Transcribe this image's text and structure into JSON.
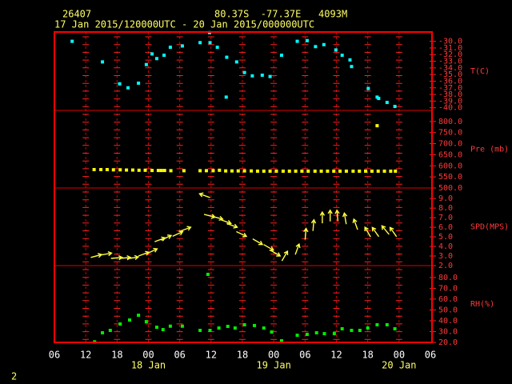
{
  "header": {
    "station": "26407",
    "location": "80.37S  -77.37E   4093M",
    "period": "17 Jan 2015/120000UTC - 20 Jan 2015/000000UTC",
    "page": "2"
  },
  "x_axis": {
    "xlim": [
      0,
      72
    ],
    "xticks": [
      {
        "value": 0,
        "label": "06"
      },
      {
        "value": 6,
        "label": "12"
      },
      {
        "value": 12,
        "label": "18"
      },
      {
        "value": 18,
        "label": "00"
      },
      {
        "value": 24,
        "label": "06"
      },
      {
        "value": 30,
        "label": "12"
      },
      {
        "value": 36,
        "label": "18"
      },
      {
        "value": 42,
        "label": "00"
      },
      {
        "value": 48,
        "label": "06"
      },
      {
        "value": 54,
        "label": "12"
      },
      {
        "value": 60,
        "label": "18"
      },
      {
        "value": 66,
        "label": "00"
      },
      {
        "value": 72,
        "label": "06"
      }
    ],
    "date_labels": [
      {
        "value": 18,
        "label": "18 Jan"
      },
      {
        "value": 42,
        "label": "19 Jan"
      },
      {
        "value": 66,
        "label": "20 Jan"
      }
    ]
  },
  "chart_data": [
    {
      "type": "scatter",
      "ylabel": "T(C)",
      "color": "#00ffff",
      "x": [
        3.4,
        9.2,
        12.5,
        14.1,
        16.1,
        17.6,
        18.7,
        19.6,
        21.0,
        22.2,
        24.5,
        27.9,
        29.7,
        29.8,
        31.2,
        32.9,
        33.0,
        34.9,
        36.4,
        37.9,
        39.8,
        41.3,
        43.5,
        46.5,
        48.4,
        50.0,
        51.6,
        53.9,
        55.1,
        56.6,
        56.9,
        60.1,
        61.8,
        62.1,
        63.7,
        65.2
      ],
      "values": [
        -30.0,
        -33.1,
        -36.4,
        -37.0,
        -36.3,
        -33.5,
        -31.9,
        -32.6,
        -32.1,
        -30.9,
        -30.7,
        -30.2,
        -28.7,
        -30.2,
        -30.9,
        -38.4,
        -32.4,
        -33.1,
        -34.7,
        -35.2,
        -35.1,
        -35.3,
        -32.1,
        -30.0,
        -29.9,
        -30.8,
        -30.5,
        -31.3,
        -32.1,
        -32.8,
        -33.8,
        -37.1,
        -38.4,
        -38.6,
        -39.2,
        -39.8
      ],
      "ylim": [
        -40.4,
        -28.6
      ],
      "yticks": [
        {
          "value": -30,
          "label": "-30.0"
        },
        {
          "value": -31,
          "label": "-31.0"
        },
        {
          "value": -32,
          "label": "-32.0"
        },
        {
          "value": -33,
          "label": "-33.0"
        },
        {
          "value": -34,
          "label": "-34.0"
        },
        {
          "value": -35,
          "label": "-35.0"
        },
        {
          "value": -36,
          "label": "-36.0"
        },
        {
          "value": -37,
          "label": "-37.0"
        },
        {
          "value": -38,
          "label": "-38.0"
        },
        {
          "value": -39,
          "label": "-39.0"
        },
        {
          "value": -40,
          "label": "-40.0"
        }
      ]
    },
    {
      "type": "scatter",
      "ylabel": "Pre (mb)",
      "color": "#ffff00",
      "x": [
        7.6,
        8.9,
        10.1,
        11.3,
        12.6,
        13.8,
        15.0,
        16.2,
        17.4,
        18.7,
        19.9,
        20.5,
        21.1,
        22.3,
        24.8,
        27.9,
        29.1,
        30.4,
        31.6,
        32.8,
        34.0,
        35.2,
        36.4,
        37.7,
        38.9,
        40.1,
        41.3,
        42.5,
        43.8,
        45.0,
        46.2,
        47.4,
        48.6,
        49.9,
        51.1,
        52.3,
        53.5,
        54.7,
        55.9,
        57.2,
        58.4,
        59.6,
        60.8,
        61.8,
        62.0,
        63.2,
        64.4,
        65.3
      ],
      "values": [
        583,
        583,
        583,
        582,
        582,
        581,
        581,
        580,
        580,
        579,
        579,
        579,
        579,
        578,
        578,
        578,
        578,
        578,
        580,
        577,
        577,
        577,
        577,
        577,
        576,
        576,
        576,
        576,
        576,
        576,
        576,
        576,
        576,
        576,
        576,
        576,
        576,
        576,
        576,
        576,
        576,
        576,
        576,
        781,
        576,
        576,
        576,
        576
      ],
      "ylim": [
        500,
        850
      ],
      "yticks": [
        {
          "value": 500,
          "label": "500.0"
        },
        {
          "value": 550,
          "label": "550.0"
        },
        {
          "value": 600,
          "label": "600.0"
        },
        {
          "value": 650,
          "label": "650.0"
        },
        {
          "value": 700,
          "label": "700.0"
        },
        {
          "value": 750,
          "label": "750.0"
        },
        {
          "value": 800,
          "label": "800.0"
        }
      ]
    },
    {
      "type": "arrow",
      "ylabel": "SPD(MPS)",
      "color": "#ffff40",
      "x": [
        8.0,
        9.9,
        11.9,
        13.5,
        15.0,
        17.1,
        18.7,
        20.2,
        21.4,
        23.6,
        25.1,
        28.8,
        29.7,
        31.2,
        32.8,
        34.0,
        35.8,
        38.9,
        41.0,
        42.3,
        44.1,
        46.5,
        48.1,
        49.6,
        51.3,
        52.8,
        54.2,
        55.7,
        57.7,
        60.0,
        61.5,
        63.4,
        64.9
      ],
      "values": [
        3.0,
        3.2,
        2.8,
        2.8,
        2.8,
        3.2,
        3.5,
        4.7,
        4.9,
        5.3,
        5.8,
        9.3,
        7.2,
        7.0,
        6.6,
        6.2,
        5.3,
        4.5,
        3.9,
        3.3,
        3.0,
        3.7,
        5.3,
        6.2,
        7.0,
        7.2,
        7.2,
        6.9,
        6.3,
        5.5,
        5.5,
        5.7,
        5.5
      ],
      "directions": [
        255,
        260,
        265,
        265,
        260,
        250,
        245,
        250,
        245,
        245,
        250,
        110,
        285,
        285,
        290,
        290,
        295,
        300,
        300,
        300,
        210,
        200,
        185,
        185,
        180,
        180,
        175,
        170,
        160,
        150,
        145,
        140,
        145
      ],
      "ylim": [
        2,
        10.1
      ],
      "yticks": [
        {
          "value": 2,
          "label": "2.0"
        },
        {
          "value": 3,
          "label": "3.0"
        },
        {
          "value": 4,
          "label": "4.0"
        },
        {
          "value": 5,
          "label": "5.0"
        },
        {
          "value": 6,
          "label": "6.0"
        },
        {
          "value": 7,
          "label": "7.0"
        },
        {
          "value": 8,
          "label": "8.0"
        },
        {
          "value": 9,
          "label": "9.0"
        }
      ]
    },
    {
      "type": "scatter",
      "ylabel": "RH(%)",
      "color": "#00ee00",
      "x": [
        7.7,
        9.2,
        10.7,
        12.6,
        14.4,
        16.1,
        17.6,
        19.6,
        20.8,
        22.2,
        24.5,
        27.9,
        29.4,
        29.8,
        31.5,
        33.2,
        34.6,
        36.4,
        38.3,
        40.1,
        41.6,
        43.5,
        46.5,
        48.4,
        50.2,
        51.7,
        53.6,
        55.1,
        56.9,
        58.5,
        60.0,
        61.8,
        63.7,
        65.2
      ],
      "values": [
        20.5,
        28.9,
        31.1,
        37.0,
        40.7,
        45.1,
        39.2,
        34.0,
        31.8,
        35.0,
        35.0,
        31.1,
        82.9,
        31.1,
        33.3,
        34.8,
        33.3,
        36.3,
        35.6,
        33.3,
        29.6,
        21.5,
        26.6,
        27.4,
        28.9,
        28.1,
        28.1,
        32.6,
        31.1,
        31.1,
        33.3,
        36.3,
        36.3,
        32.6
      ],
      "ylim": [
        20,
        91
      ],
      "yticks": [
        {
          "value": 20,
          "label": "20.0"
        },
        {
          "value": 30,
          "label": "30.0"
        },
        {
          "value": 40,
          "label": "40.0"
        },
        {
          "value": 50,
          "label": "50.0"
        },
        {
          "value": 60,
          "label": "60.0"
        },
        {
          "value": 70,
          "label": "70.0"
        },
        {
          "value": 80,
          "label": "80.0"
        }
      ]
    }
  ]
}
